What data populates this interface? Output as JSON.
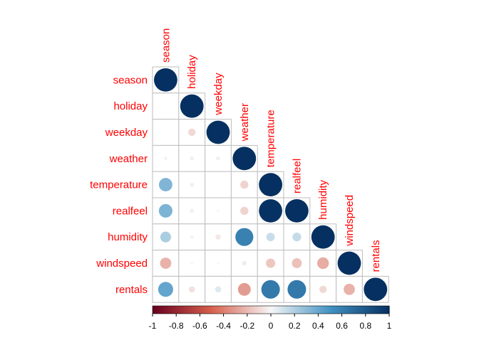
{
  "chart_data": {
    "type": "heatmap",
    "variables": [
      "season",
      "holiday",
      "weekday",
      "weather",
      "temperature",
      "realfeel",
      "humidity",
      "windspeed",
      "rentals"
    ],
    "matrix": [
      [
        1.0,
        0.0,
        0.0,
        -0.02,
        0.33,
        0.34,
        0.21,
        -0.23,
        0.41
      ],
      [
        0.0,
        1.0,
        -0.1,
        -0.03,
        -0.03,
        -0.03,
        -0.02,
        0.01,
        -0.07
      ],
      [
        0.0,
        -0.1,
        1.0,
        0.03,
        0.0,
        -0.01,
        -0.05,
        0.01,
        0.07
      ],
      [
        -0.02,
        -0.03,
        0.03,
        1.0,
        -0.12,
        -0.12,
        0.59,
        0.04,
        -0.3
      ],
      [
        0.33,
        -0.03,
        0.0,
        -0.12,
        1.0,
        0.99,
        0.13,
        -0.16,
        0.63
      ],
      [
        0.34,
        -0.03,
        -0.01,
        -0.12,
        0.99,
        1.0,
        0.14,
        -0.18,
        0.63
      ],
      [
        0.21,
        -0.02,
        -0.05,
        0.59,
        0.13,
        0.14,
        1.0,
        -0.25,
        -0.1
      ],
      [
        -0.23,
        0.01,
        0.01,
        0.04,
        -0.16,
        -0.18,
        -0.25,
        1.0,
        -0.23
      ],
      [
        0.41,
        -0.07,
        0.07,
        -0.3,
        0.63,
        0.63,
        -0.1,
        -0.23,
        1.0
      ]
    ],
    "colorbar": {
      "ticks": [
        "-1",
        "-0.8",
        "-0.6",
        "-0.4",
        "-0.2",
        "0",
        "0.2",
        "0.4",
        "0.6",
        "0.8",
        "1"
      ],
      "range": [
        -1,
        1
      ]
    },
    "colors": {
      "negative_strong": "#67001F",
      "negative_mid": "#D6604D",
      "neutral": "#F7F7F7",
      "positive_mid": "#4393C3",
      "positive_strong": "#053061",
      "label": "#FF0000",
      "grid": "#BEBEBE"
    }
  }
}
